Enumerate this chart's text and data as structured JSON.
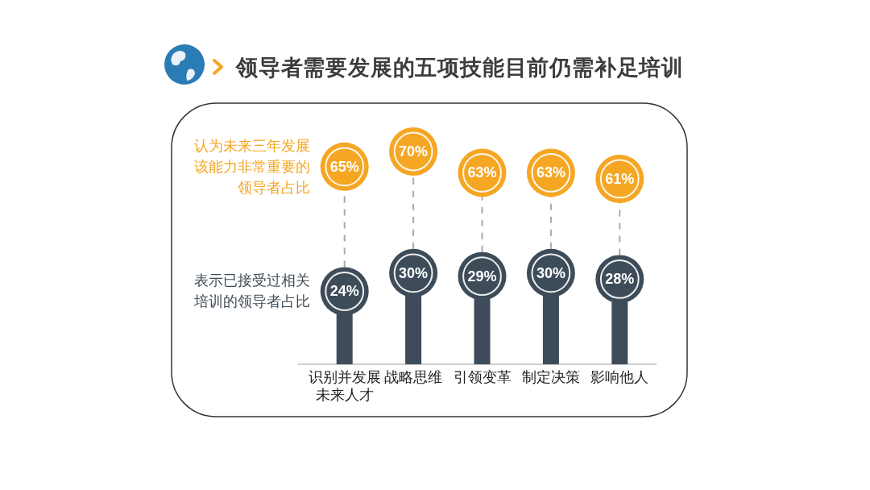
{
  "chart_data": {
    "type": "lollipop",
    "title": "领导者需要发展的五项技能目前仍需补足培训",
    "categories": [
      "识别并发展未来人才",
      "战略思维",
      "引领变革",
      "制定决策",
      "影响他人"
    ],
    "tick_labels": "x",
    "marker": "circle",
    "series": [
      {
        "name": "认为未来三年发展该能力非常重要的领导者占比",
        "color": "#f5a623",
        "values": [
          65,
          70,
          63,
          63,
          61
        ],
        "value_labels": [
          "65%",
          "70%",
          "63%",
          "63%",
          "61%"
        ],
        "line_style": "dashed"
      },
      {
        "name": "表示已接受过相关培训的领导者占比",
        "color": "#3e4c59",
        "values": [
          24,
          30,
          29,
          30,
          28
        ],
        "value_labels": [
          "24%",
          "30%",
          "29%",
          "30%",
          "28%"
        ],
        "line_style": "solid"
      }
    ]
  }
}
